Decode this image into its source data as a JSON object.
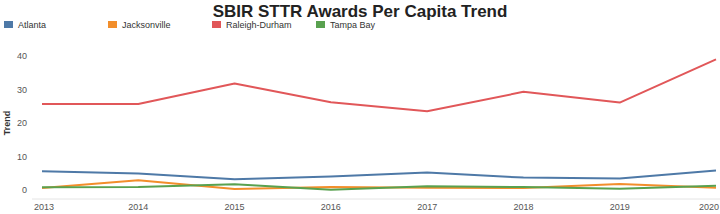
{
  "chart_data": {
    "type": "line",
    "title": "SBIR STTR Awards Per Capita Trend",
    "y_label": "Trend",
    "categories": [
      "2013",
      "2014",
      "2015",
      "2016",
      "2017",
      "2018",
      "2019",
      "2020"
    ],
    "series": [
      {
        "name": "Atlanta",
        "color": "#4e79a7",
        "values": [
          5.6,
          4.9,
          3.2,
          4.0,
          5.2,
          3.7,
          3.4,
          5.8
        ]
      },
      {
        "name": "Jacksonville",
        "color": "#f28e2b",
        "values": [
          0.6,
          2.9,
          0.3,
          0.9,
          0.7,
          0.6,
          1.8,
          0.7
        ]
      },
      {
        "name": "Raleigh-Durham",
        "color": "#e15759",
        "values": [
          25.7,
          25.7,
          31.8,
          26.2,
          23.5,
          29.3,
          26.1,
          39.0
        ]
      },
      {
        "name": "Tampa Bay",
        "color": "#59a14f",
        "values": [
          0.8,
          0.9,
          1.7,
          0.1,
          1.1,
          0.9,
          0.4,
          1.3
        ]
      }
    ],
    "ylim": [
      0,
      40
    ],
    "yticks": [
      0,
      10,
      20,
      30,
      40
    ],
    "grid": false,
    "legend": "top-left"
  }
}
